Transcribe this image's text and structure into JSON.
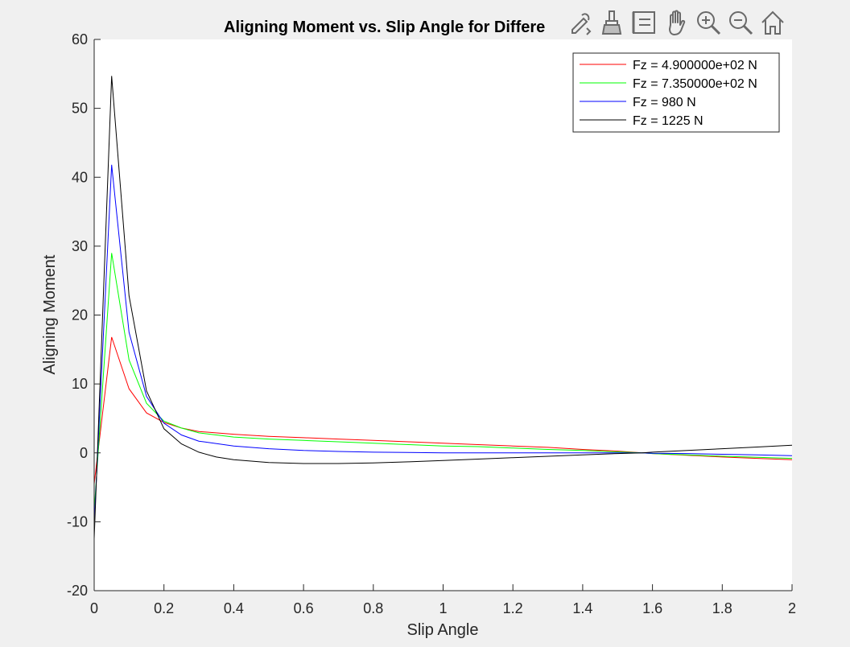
{
  "toolbar": {
    "icons": [
      "edit-plot-icon",
      "brush-icon",
      "data-tips-icon",
      "pan-icon",
      "zoom-in-icon",
      "zoom-out-icon",
      "home-icon"
    ]
  },
  "chart_data": {
    "type": "line",
    "title": "Aligning Moment vs. Slip Angle for Differe",
    "xlabel": "Slip Angle",
    "ylabel": "Aligning Moment",
    "xlim": [
      0,
      2
    ],
    "ylim": [
      -20,
      60
    ],
    "xticks": [
      0,
      0.2,
      0.4,
      0.6,
      0.8,
      1,
      1.2,
      1.4,
      1.6,
      1.8,
      2
    ],
    "xtick_labels": [
      "0",
      "0.2",
      "0.4",
      "0.6",
      "0.8",
      "1",
      "1.2",
      "1.4",
      "1.6",
      "1.8",
      "2"
    ],
    "yticks": [
      -20,
      -10,
      0,
      10,
      20,
      30,
      40,
      50,
      60
    ],
    "ytick_labels": [
      "-20",
      "-10",
      "0",
      "10",
      "20",
      "30",
      "40",
      "50",
      "60"
    ],
    "grid": false,
    "legend_position": "top-right",
    "series": [
      {
        "name": "Fz = 4.900000e+02 N",
        "color": "#ff0000",
        "x": [
          0,
          0.05,
          0.1,
          0.15,
          0.2,
          0.25,
          0.3,
          0.4,
          0.5,
          0.6,
          0.7,
          0.8,
          0.9,
          1.0,
          1.1,
          1.2,
          1.3,
          1.4,
          1.5,
          1.571,
          1.6,
          1.7,
          1.8,
          1.9,
          2.0
        ],
        "y": [
          -4.5,
          16.8,
          9.3,
          5.8,
          4.4,
          3.6,
          3.1,
          2.7,
          2.4,
          2.2,
          2.0,
          1.8,
          1.6,
          1.4,
          1.2,
          1.0,
          0.8,
          0.5,
          0.25,
          0.0,
          -0.1,
          -0.35,
          -0.6,
          -0.8,
          -1.0
        ]
      },
      {
        "name": "Fz = 7.350000e+02 N",
        "color": "#00ff00",
        "x": [
          0,
          0.05,
          0.1,
          0.15,
          0.2,
          0.25,
          0.3,
          0.4,
          0.5,
          0.6,
          0.7,
          0.8,
          0.9,
          1.0,
          1.1,
          1.2,
          1.3,
          1.4,
          1.5,
          1.571,
          1.6,
          1.7,
          1.8,
          1.9,
          2.0
        ],
        "y": [
          -8.5,
          29.0,
          13.5,
          7.2,
          4.6,
          3.6,
          2.9,
          2.3,
          2.0,
          1.8,
          1.6,
          1.4,
          1.2,
          1.0,
          0.9,
          0.7,
          0.5,
          0.35,
          0.15,
          0.0,
          -0.1,
          -0.3,
          -0.5,
          -0.65,
          -0.8
        ]
      },
      {
        "name": "Fz = 980 N",
        "color": "#0000ff",
        "x": [
          0,
          0.05,
          0.1,
          0.15,
          0.2,
          0.25,
          0.3,
          0.4,
          0.5,
          0.6,
          0.7,
          0.8,
          0.9,
          1.0,
          1.1,
          1.2,
          1.3,
          1.4,
          1.5,
          1.571,
          1.6,
          1.7,
          1.8,
          1.9,
          2.0
        ],
        "y": [
          -10.5,
          41.8,
          17.5,
          8.2,
          4.3,
          2.6,
          1.7,
          1.0,
          0.6,
          0.35,
          0.2,
          0.1,
          0.05,
          0.0,
          0.0,
          0.0,
          0.0,
          0.0,
          0.0,
          0.0,
          -0.05,
          -0.1,
          -0.2,
          -0.3,
          -0.4
        ]
      },
      {
        "name": "Fz = 1225 N",
        "color": "#000000",
        "x": [
          0,
          0.05,
          0.1,
          0.15,
          0.2,
          0.25,
          0.3,
          0.35,
          0.4,
          0.5,
          0.6,
          0.7,
          0.8,
          0.9,
          1.0,
          1.1,
          1.2,
          1.3,
          1.4,
          1.5,
          1.571,
          1.6,
          1.7,
          1.8,
          1.9,
          2.0
        ],
        "y": [
          -12.5,
          54.7,
          22.8,
          9.0,
          3.5,
          1.3,
          0.1,
          -0.6,
          -1.0,
          -1.4,
          -1.55,
          -1.55,
          -1.45,
          -1.3,
          -1.1,
          -0.9,
          -0.7,
          -0.5,
          -0.3,
          -0.1,
          0.0,
          0.1,
          0.35,
          0.6,
          0.85,
          1.1
        ]
      }
    ]
  }
}
